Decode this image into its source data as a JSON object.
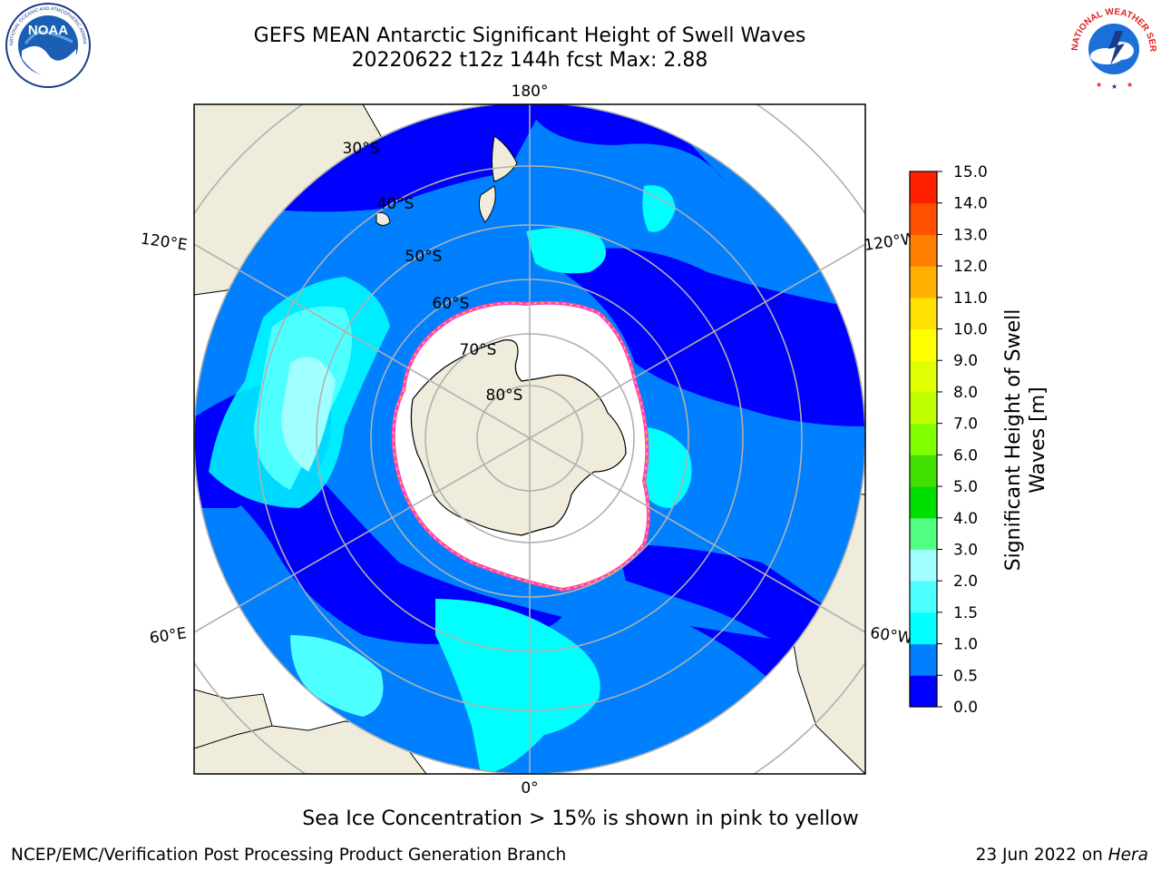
{
  "header": {
    "title_line1": "GEFS MEAN Antarctic Significant Height of Swell Waves",
    "title_line2": "20220622 t12z 144h fcst   Max: 2.88"
  },
  "logos": {
    "left": {
      "icon": "noaa-logo-icon",
      "text": "NOAA",
      "ring_text": "NATIONAL OCEANIC AND ATMOSPHERIC ADMINISTRATION · U.S. DEPARTMENT OF COMMERCE"
    },
    "right": {
      "icon": "national-weather-service-logo-icon",
      "ring_text": "NATIONAL WEATHER SERVICE"
    }
  },
  "map": {
    "projection": "south-polar-stereographic",
    "lon_labels": [
      "180°",
      "120°E",
      "120°W",
      "60°E",
      "60°W",
      "0°"
    ],
    "lat_labels": [
      "30°S",
      "40°S",
      "50°S",
      "60°S",
      "70°S",
      "80°S"
    ],
    "colors": {
      "land": "#efecdc",
      "ice": "#ffffff",
      "ocean_low": "#0000ff",
      "ocean_mid": "#0080ff",
      "ocean_high": "#00ffff",
      "ocean_higher": "#4dffff",
      "grid": "#b0b0b0"
    }
  },
  "colorbar": {
    "label": "Significant Height of Swell Waves [m]",
    "label_line1": "Significant Height of Swell",
    "label_line2": "Waves [m]",
    "ticks": [
      "15.0",
      "14.0",
      "13.0",
      "12.0",
      "11.0",
      "10.0",
      "9.0",
      "8.0",
      "7.0",
      "6.0",
      "5.0",
      "4.0",
      "3.0",
      "2.0",
      "1.5",
      "1.0",
      "0.5",
      "0.0"
    ],
    "colors_bottom_to_top": [
      "#0000ff",
      "#0080ff",
      "#00ffff",
      "#4dffff",
      "#a0ffff",
      "#50ff80",
      "#00e000",
      "#40e000",
      "#80ff00",
      "#c0ff00",
      "#e0ff00",
      "#ffff00",
      "#ffe000",
      "#ffb000",
      "#ff8000",
      "#ff5000",
      "#ff2000"
    ]
  },
  "note": "Sea Ice Concentration > 15% is shown in pink to yellow",
  "footer": {
    "left": "NCEP/EMC/Verification Post Processing Product Generation Branch",
    "right_date": "23 Jun 2022 on ",
    "right_host": "Hera"
  }
}
